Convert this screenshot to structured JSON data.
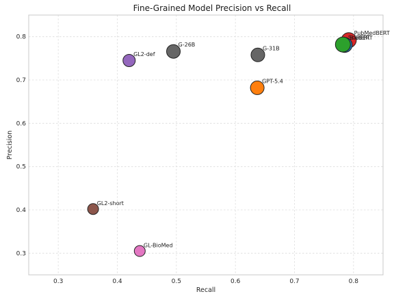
{
  "chart_data": {
    "type": "scatter",
    "title": "Fine-Grained Model Precision vs Recall",
    "xlabel": "Recall",
    "ylabel": "Precision",
    "xlim": [
      0.25,
      0.85
    ],
    "ylim": [
      0.25,
      0.85
    ],
    "xticks": [
      "0.3",
      "0.4",
      "0.5",
      "0.6",
      "0.7",
      "0.8"
    ],
    "yticks": [
      "0.3",
      "0.4",
      "0.5",
      "0.6",
      "0.7",
      "0.8"
    ],
    "grid": true,
    "points": [
      {
        "label": "GL-BioMed",
        "x": 0.438,
        "y": 0.305,
        "color": "#e377c2",
        "size": 8
      },
      {
        "label": "GL2-short",
        "x": 0.359,
        "y": 0.402,
        "color": "#8c564b",
        "size": 8
      },
      {
        "label": "GL2-def",
        "x": 0.42,
        "y": 0.745,
        "color": "#9467bd",
        "size": 9
      },
      {
        "label": "G-26B",
        "x": 0.495,
        "y": 0.766,
        "color": "#666666",
        "size": 10
      },
      {
        "label": "G-31B",
        "x": 0.638,
        "y": 0.758,
        "color": "#666666",
        "size": 10
      },
      {
        "label": "GPT-5.4",
        "x": 0.637,
        "y": 0.682,
        "color": "#ff7f0e",
        "size": 10
      },
      {
        "label": "PubMedBERT",
        "x": 0.792,
        "y": 0.792,
        "color": "#d62728",
        "size": 11
      },
      {
        "label": "BioBERT",
        "x": 0.785,
        "y": 0.781,
        "color": "#1f77b4",
        "size": 11
      },
      {
        "label": "SciBERT",
        "x": 0.782,
        "y": 0.782,
        "color": "#2ca02c",
        "size": 11
      }
    ]
  }
}
